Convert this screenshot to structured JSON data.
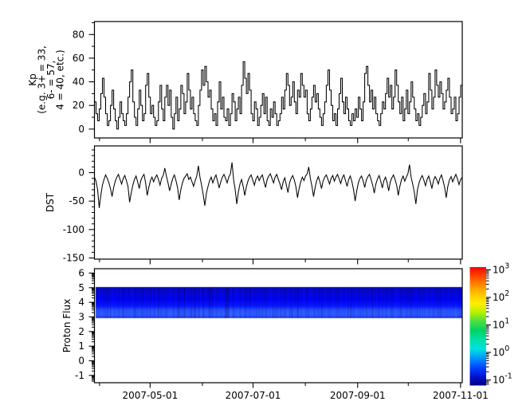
{
  "meta": {
    "background": "#ffffff",
    "axis_color": "#000000",
    "series_color": "#000000"
  },
  "x_axis": {
    "start_date": "2007-03-29",
    "end_date": "2007-11-02",
    "major_ticks": [
      "2007-05-01",
      "2007-07-01",
      "2007-09-01",
      "2007-11-01"
    ],
    "major_tick_labels": [
      "2007-05-01",
      "2007-07-01",
      "2007-09-01",
      "2007-11-01"
    ],
    "minor_ticks": [
      "2007-04-01",
      "2007-06-01",
      "2007-08-01",
      "2007-10-01"
    ]
  },
  "chart_data": [
    {
      "id": "kp",
      "type": "line",
      "draw": "steps",
      "ylabel_lines": [
        "Kp",
        "(e.g. 3+ = 33,",
        "6- = 57,",
        "4 = 40, etc.)"
      ],
      "ylim": [
        -7.5,
        91
      ],
      "yticks": [
        0,
        20,
        40,
        60,
        80
      ],
      "yminors": [
        10,
        30,
        50,
        70,
        90
      ],
      "color": "#000000",
      "values": [
        23,
        13,
        7,
        17,
        30,
        43,
        27,
        13,
        3,
        7,
        20,
        33,
        17,
        7,
        0,
        10,
        23,
        13,
        7,
        3,
        13,
        27,
        40,
        50,
        23,
        10,
        3,
        17,
        33,
        20,
        7,
        13,
        37,
        47,
        27,
        13,
        20,
        10,
        3,
        7,
        23,
        37,
        17,
        7,
        27,
        37,
        20,
        33,
        10,
        0,
        13,
        27,
        7,
        17,
        37,
        30,
        13,
        23,
        47,
        33,
        17,
        27,
        13,
        7,
        3,
        20,
        33,
        50,
        37,
        53,
        40,
        27,
        33,
        17,
        7,
        13,
        3,
        23,
        40,
        17,
        27,
        10,
        7,
        17,
        3,
        13,
        30,
        23,
        7,
        17,
        27,
        13,
        37,
        57,
        43,
        30,
        47,
        33,
        13,
        7,
        23,
        17,
        3,
        10,
        20,
        30,
        13,
        27,
        7,
        3,
        17,
        10,
        23,
        13,
        3,
        7,
        13,
        27,
        17,
        33,
        47,
        37,
        20,
        27,
        40,
        23,
        13,
        33,
        27,
        47,
        37,
        27,
        33,
        13,
        7,
        17,
        27,
        37,
        23,
        30,
        17,
        10,
        3,
        13,
        23,
        37,
        50,
        33,
        20,
        7,
        13,
        3,
        17,
        30,
        43,
        23,
        13,
        27,
        17,
        7,
        3,
        13,
        7,
        17,
        10,
        27,
        17,
        7,
        23,
        47,
        53,
        37,
        23,
        33,
        17,
        27,
        13,
        7,
        3,
        13,
        23,
        17,
        30,
        43,
        27,
        37,
        17,
        27,
        50,
        37,
        23,
        13,
        27,
        7,
        17,
        33,
        13,
        23,
        40,
        27,
        17,
        7,
        13,
        3,
        10,
        20,
        30,
        13,
        23,
        47,
        33,
        17,
        27,
        50,
        37,
        27,
        40,
        30,
        17,
        23,
        33,
        43,
        27,
        13,
        17,
        27,
        7,
        13,
        27,
        37,
        17
      ]
    },
    {
      "id": "dst",
      "type": "line",
      "draw": "linear",
      "ylabel": "DST",
      "ylim": [
        -152,
        47
      ],
      "yticks": [
        0,
        -50,
        -100,
        -150
      ],
      "yminors": [
        40,
        30,
        20,
        10,
        -10,
        -20,
        -30,
        -40,
        -60,
        -70,
        -80,
        -90,
        -110,
        -120,
        -130,
        -140
      ],
      "color": "#000000",
      "values": [
        -8,
        -15,
        -30,
        -62,
        -40,
        -22,
        -12,
        -4,
        -10,
        -18,
        -28,
        -42,
        -26,
        -15,
        -8,
        -3,
        -12,
        -20,
        -10,
        -5,
        -14,
        -24,
        -52,
        -35,
        -22,
        -12,
        -6,
        -16,
        -28,
        -14,
        -7,
        -3,
        -18,
        -40,
        -26,
        -14,
        -8,
        -16,
        -9,
        -4,
        -12,
        -22,
        -10,
        -5,
        8,
        -6,
        -18,
        -32,
        -20,
        -10,
        -4,
        -14,
        -26,
        -48,
        -30,
        -18,
        -10,
        -6,
        -2,
        -12,
        -8,
        -16,
        -24,
        -14,
        -6,
        12,
        -8,
        -22,
        -38,
        -58,
        -36,
        -24,
        -14,
        -8,
        -18,
        -10,
        -4,
        -15,
        -27,
        -16,
        -8,
        -3,
        -10,
        -18,
        -8,
        -2,
        18,
        -12,
        -30,
        -55,
        -34,
        -20,
        -12,
        -24,
        -40,
        -25,
        -15,
        -8,
        -4,
        -13,
        -22,
        -11,
        -6,
        -14,
        -8,
        -4,
        -16,
        -26,
        -12,
        -6,
        -2,
        -10,
        -18,
        -8,
        -3,
        -12,
        -20,
        -30,
        -16,
        -9,
        -22,
        -35,
        -18,
        -10,
        -5,
        -13,
        -25,
        -44,
        -28,
        -16,
        -8,
        -14,
        -6,
        -2,
        10,
        -10,
        -24,
        -42,
        -26,
        -14,
        -7,
        -16,
        -28,
        -15,
        -8,
        -4,
        -12,
        -20,
        -10,
        -5,
        -15,
        -8,
        -3,
        -11,
        -19,
        -9,
        -4,
        -14,
        -24,
        -12,
        -6,
        -16,
        -30,
        -50,
        -32,
        -18,
        -10,
        -6,
        -14,
        -26,
        -13,
        -7,
        -3,
        -12,
        -22,
        -36,
        -20,
        -11,
        -5,
        -15,
        -27,
        -14,
        -8,
        -18,
        -32,
        -16,
        -9,
        -4,
        -12,
        -22,
        -40,
        -24,
        -12,
        -6,
        -15,
        -8,
        -2,
        14,
        -8,
        -20,
        -34,
        -55,
        -30,
        -18,
        -10,
        -5,
        -13,
        -23,
        -12,
        -6,
        -16,
        -28,
        -14,
        -7,
        -12,
        -20,
        -10,
        -4,
        -14,
        -26,
        -44,
        -24,
        -13,
        -7,
        -16,
        -9,
        -3,
        -11,
        -21,
        -12,
        -8
      ]
    },
    {
      "id": "proton_flux",
      "type": "heatmap",
      "ylabel": "Proton Flux",
      "ylim": [
        -1.5,
        6.3
      ],
      "yticks": [
        6,
        5,
        4,
        3,
        2,
        1,
        0,
        -1
      ],
      "yminors_log": true,
      "band": {
        "y_top": 5.05,
        "y_bottom": 3.0,
        "description": "continuous low-flux blue band with vertical striations",
        "flux_top_color": "#0808b6",
        "flux_mid_color": "#0004e8",
        "flux_bottom_color": "#244cff"
      }
    }
  ],
  "colorbar": {
    "scale": "log",
    "exponent_range": [
      -1.2,
      3.1
    ],
    "tick_label_base": "10",
    "tick_exponents": [
      3,
      2,
      1,
      0,
      -1
    ],
    "gradient_top_to_bottom": [
      "#fa0000",
      "#ff4600",
      "#ff8c00",
      "#ffc800",
      "#fff000",
      "#b4f000",
      "#46dc46",
      "#00d264",
      "#00e0aa",
      "#00e0e0",
      "#0096ff",
      "#0046ff",
      "#0014d2",
      "#000082"
    ]
  }
}
